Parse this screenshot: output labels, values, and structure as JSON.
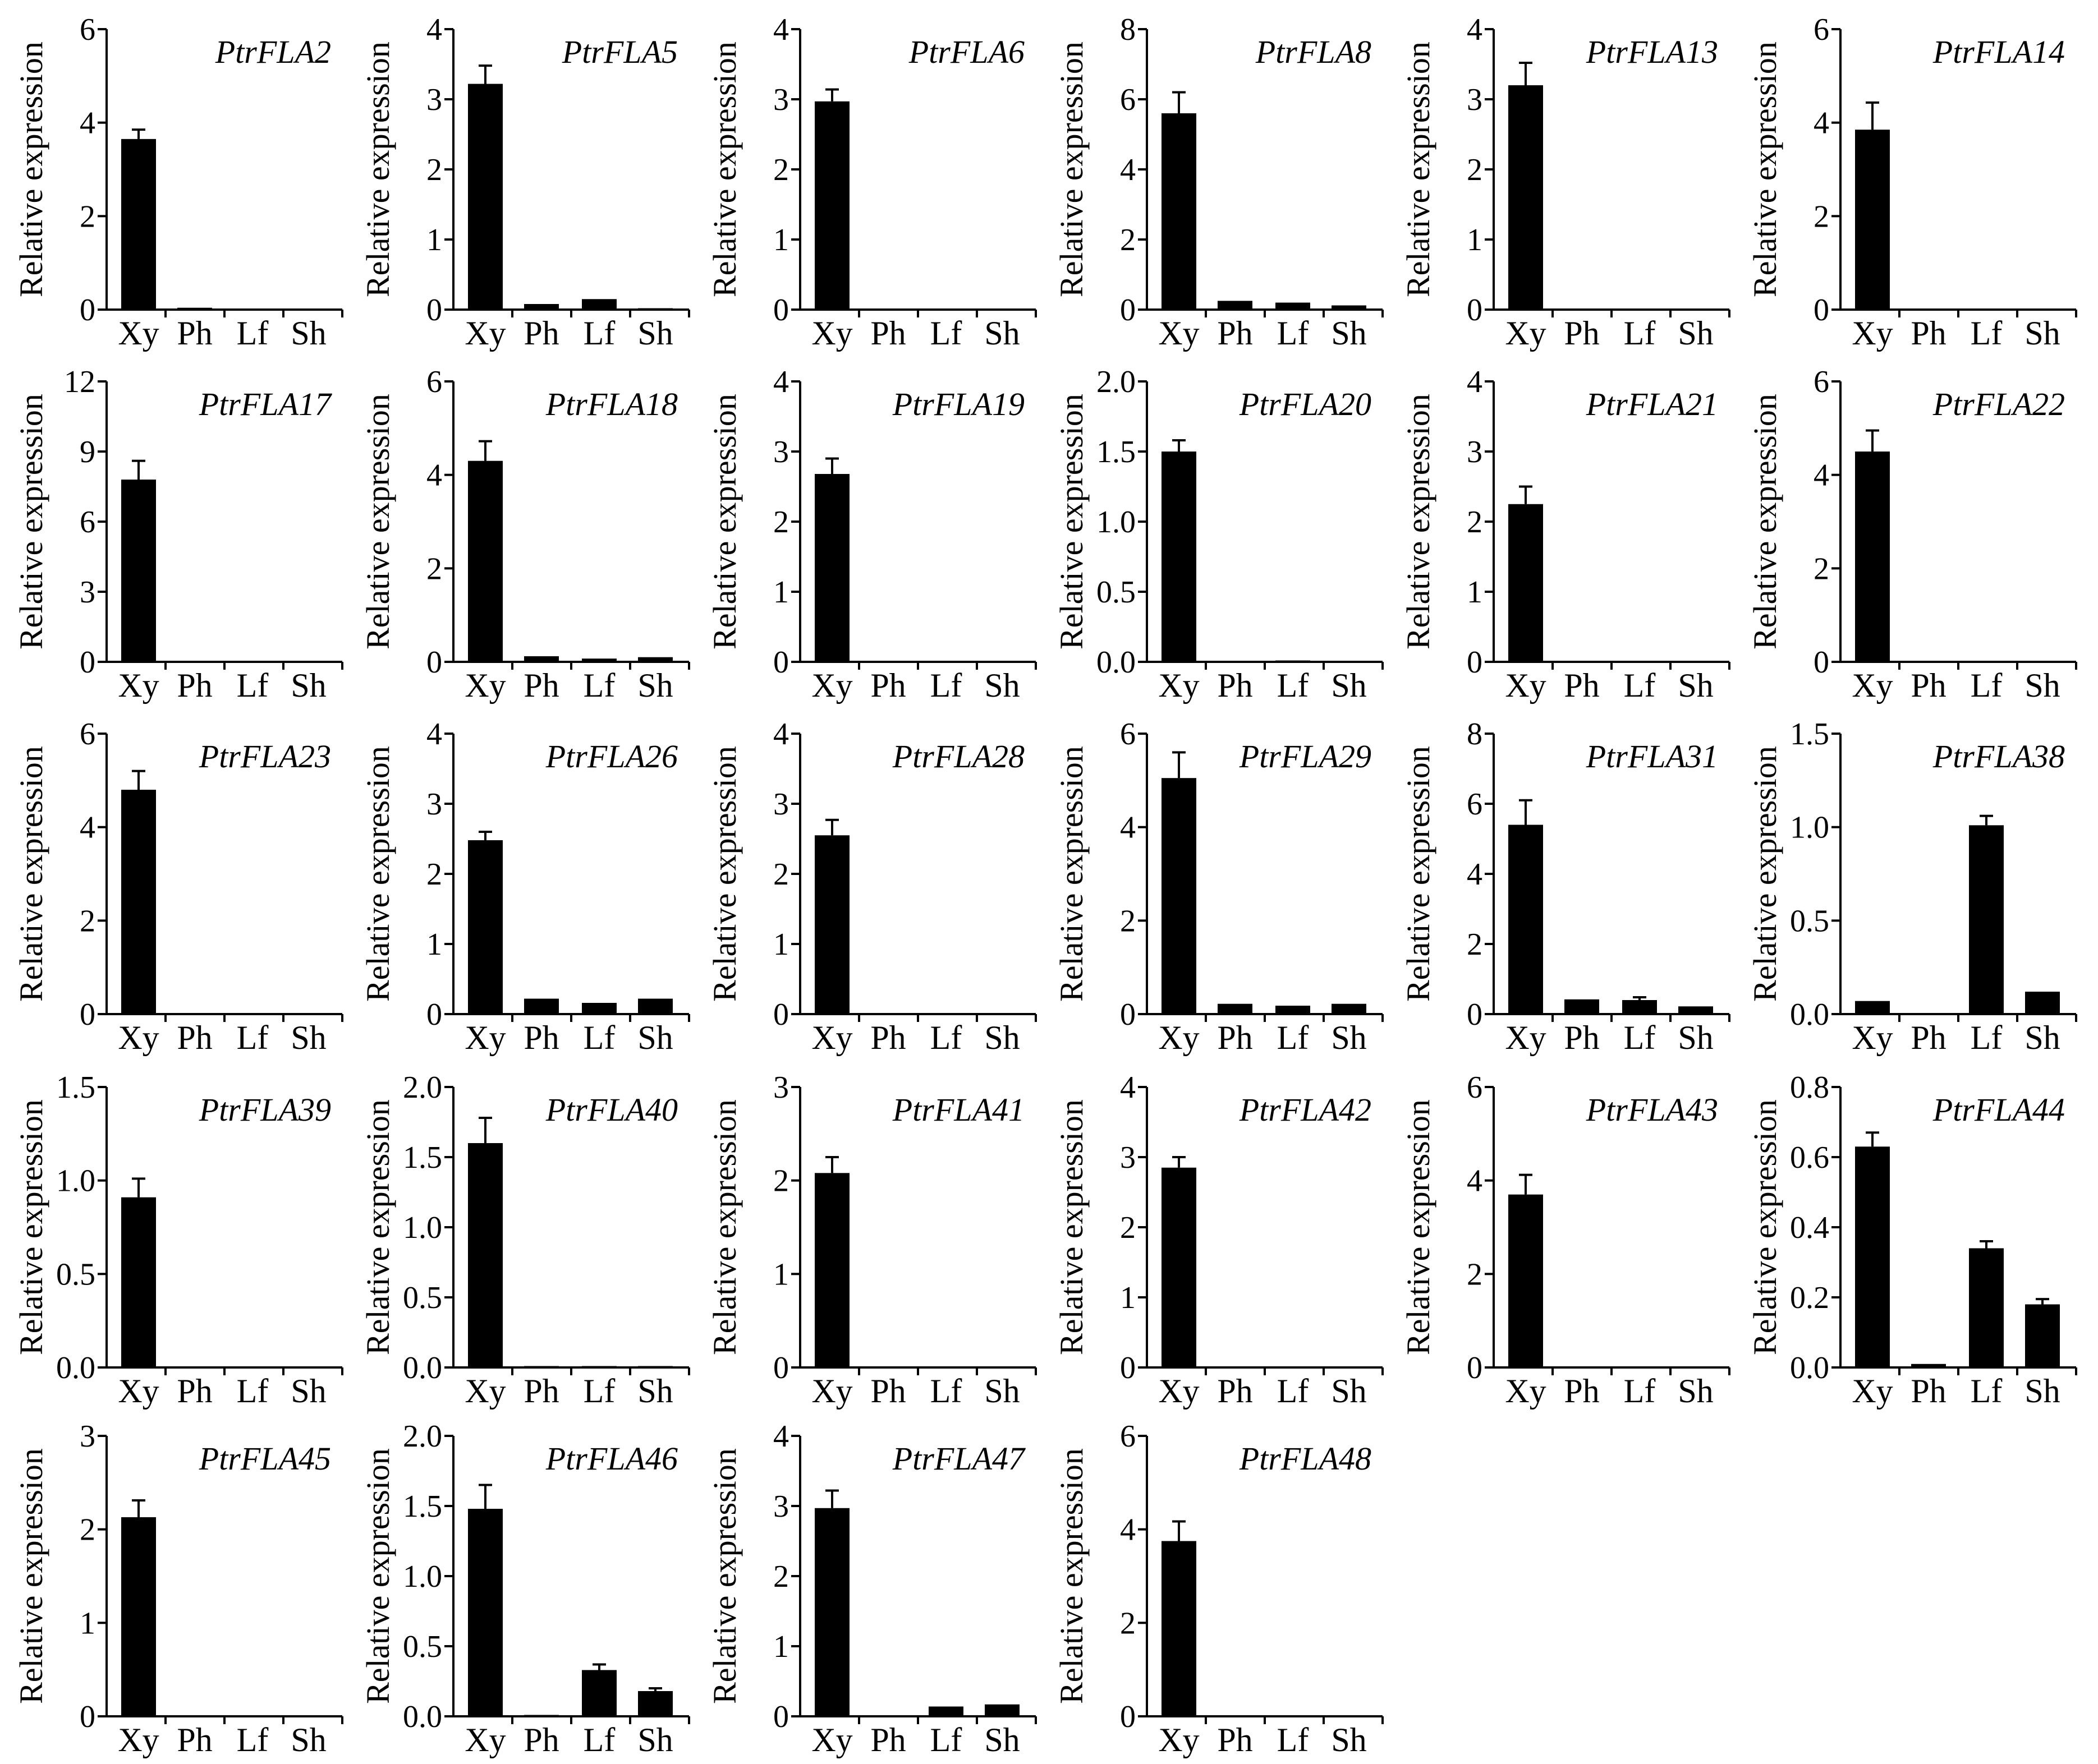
{
  "figure": {
    "y_axis_label": "Relative expression",
    "categories": [
      "Xy",
      "Ph",
      "Lf",
      "Sh"
    ],
    "colors": {
      "bar": "#000000",
      "axis": "#000000",
      "background": "#ffffff"
    }
  },
  "chart_data": [
    {
      "type": "bar",
      "title": "PtrFLA2",
      "ylabel": "Relative expression",
      "categories": [
        "Xy",
        "Ph",
        "Lf",
        "Sh"
      ],
      "values": [
        3.65,
        0.04,
        0.02,
        0.01
      ],
      "errors": [
        0.2,
        0.01,
        0.01,
        0.01
      ],
      "ylim": [
        0,
        6
      ],
      "yticks": [
        0,
        2,
        4,
        6
      ]
    },
    {
      "type": "bar",
      "title": "PtrFLA5",
      "ylabel": "Relative expression",
      "categories": [
        "Xy",
        "Ph",
        "Lf",
        "Sh"
      ],
      "values": [
        3.22,
        0.08,
        0.15,
        0.02
      ],
      "errors": [
        0.26,
        0.02,
        0.03,
        0.01
      ],
      "ylim": [
        0,
        4
      ],
      "yticks": [
        0,
        1,
        2,
        3,
        4
      ]
    },
    {
      "type": "bar",
      "title": "PtrFLA6",
      "ylabel": "Relative expression",
      "categories": [
        "Xy",
        "Ph",
        "Lf",
        "Sh"
      ],
      "values": [
        2.97,
        0.0,
        0.0,
        0.0
      ],
      "errors": [
        0.17,
        0,
        0,
        0
      ],
      "ylim": [
        0,
        4
      ],
      "yticks": [
        0,
        1,
        2,
        3,
        4
      ]
    },
    {
      "type": "bar",
      "title": "PtrFLA8",
      "ylabel": "Relative expression",
      "categories": [
        "Xy",
        "Ph",
        "Lf",
        "Sh"
      ],
      "values": [
        5.6,
        0.25,
        0.2,
        0.12
      ],
      "errors": [
        0.6,
        0.05,
        0.05,
        0.03
      ],
      "ylim": [
        0,
        8
      ],
      "yticks": [
        0,
        2,
        4,
        6,
        8
      ]
    },
    {
      "type": "bar",
      "title": "PtrFLA13",
      "ylabel": "Relative expression",
      "categories": [
        "Xy",
        "Ph",
        "Lf",
        "Sh"
      ],
      "values": [
        3.2,
        0.01,
        0.01,
        0.01
      ],
      "errors": [
        0.32,
        0,
        0,
        0
      ],
      "ylim": [
        0,
        4
      ],
      "yticks": [
        0,
        1,
        2,
        3,
        4
      ]
    },
    {
      "type": "bar",
      "title": "PtrFLA14",
      "ylabel": "Relative expression",
      "categories": [
        "Xy",
        "Ph",
        "Lf",
        "Sh"
      ],
      "values": [
        3.85,
        0.01,
        0.01,
        0.01
      ],
      "errors": [
        0.58,
        0,
        0,
        0
      ],
      "ylim": [
        0,
        6
      ],
      "yticks": [
        0,
        2,
        4,
        6
      ]
    },
    {
      "type": "bar",
      "title": "PtrFLA17",
      "ylabel": "Relative expression",
      "categories": [
        "Xy",
        "Ph",
        "Lf",
        "Sh"
      ],
      "values": [
        7.8,
        0.0,
        0.02,
        0.0
      ],
      "errors": [
        0.8,
        0,
        0.01,
        0
      ],
      "ylim": [
        0,
        12
      ],
      "yticks": [
        0,
        3,
        6,
        9,
        12
      ]
    },
    {
      "type": "bar",
      "title": "PtrFLA18",
      "ylabel": "Relative expression",
      "categories": [
        "Xy",
        "Ph",
        "Lf",
        "Sh"
      ],
      "values": [
        4.3,
        0.12,
        0.07,
        0.1
      ],
      "errors": [
        0.42,
        0.03,
        0.02,
        0.03
      ],
      "ylim": [
        0,
        6
      ],
      "yticks": [
        0,
        2,
        4,
        6
      ]
    },
    {
      "type": "bar",
      "title": "PtrFLA19",
      "ylabel": "Relative expression",
      "categories": [
        "Xy",
        "Ph",
        "Lf",
        "Sh"
      ],
      "values": [
        2.68,
        0.0,
        0.01,
        0.0
      ],
      "errors": [
        0.22,
        0,
        0,
        0
      ],
      "ylim": [
        0,
        4
      ],
      "yticks": [
        0,
        1,
        2,
        3,
        4
      ]
    },
    {
      "type": "bar",
      "title": "PtrFLA20",
      "ylabel": "Relative expression",
      "categories": [
        "Xy",
        "Ph",
        "Lf",
        "Sh"
      ],
      "values": [
        1.5,
        0.0,
        0.01,
        0.0
      ],
      "errors": [
        0.08,
        0,
        0,
        0
      ],
      "ylim": [
        0,
        2.0
      ],
      "yticks": [
        0,
        0.5,
        1.0,
        1.5,
        2.0
      ]
    },
    {
      "type": "bar",
      "title": "PtrFLA21",
      "ylabel": "Relative expression",
      "categories": [
        "Xy",
        "Ph",
        "Lf",
        "Sh"
      ],
      "values": [
        2.25,
        0.01,
        0.01,
        0.01
      ],
      "errors": [
        0.25,
        0,
        0,
        0
      ],
      "ylim": [
        0,
        4
      ],
      "yticks": [
        0,
        1,
        2,
        3,
        4
      ]
    },
    {
      "type": "bar",
      "title": "PtrFLA22",
      "ylabel": "Relative expression",
      "categories": [
        "Xy",
        "Ph",
        "Lf",
        "Sh"
      ],
      "values": [
        4.5,
        0.02,
        0.02,
        0.02
      ],
      "errors": [
        0.45,
        0,
        0,
        0
      ],
      "ylim": [
        0,
        6
      ],
      "yticks": [
        0,
        2,
        4,
        6
      ]
    },
    {
      "type": "bar",
      "title": "PtrFLA23",
      "ylabel": "Relative expression",
      "categories": [
        "Xy",
        "Ph",
        "Lf",
        "Sh"
      ],
      "values": [
        4.8,
        0.0,
        0.0,
        0.0
      ],
      "errors": [
        0.4,
        0,
        0,
        0
      ],
      "ylim": [
        0,
        6
      ],
      "yticks": [
        0,
        2,
        4,
        6
      ]
    },
    {
      "type": "bar",
      "title": "PtrFLA26",
      "ylabel": "Relative expression",
      "categories": [
        "Xy",
        "Ph",
        "Lf",
        "Sh"
      ],
      "values": [
        2.48,
        0.22,
        0.16,
        0.22
      ],
      "errors": [
        0.12,
        0.03,
        0.02,
        0.03
      ],
      "ylim": [
        0,
        4
      ],
      "yticks": [
        0,
        1,
        2,
        3,
        4
      ]
    },
    {
      "type": "bar",
      "title": "PtrFLA28",
      "ylabel": "Relative expression",
      "categories": [
        "Xy",
        "Ph",
        "Lf",
        "Sh"
      ],
      "values": [
        2.55,
        0.0,
        0.0,
        0.0
      ],
      "errors": [
        0.22,
        0,
        0,
        0
      ],
      "ylim": [
        0,
        4
      ],
      "yticks": [
        0,
        1,
        2,
        3,
        4
      ]
    },
    {
      "type": "bar",
      "title": "PtrFLA29",
      "ylabel": "Relative expression",
      "categories": [
        "Xy",
        "Ph",
        "Lf",
        "Sh"
      ],
      "values": [
        5.05,
        0.22,
        0.18,
        0.22
      ],
      "errors": [
        0.55,
        0.03,
        0.03,
        0.03
      ],
      "ylim": [
        0,
        6
      ],
      "yticks": [
        0,
        2,
        4,
        6
      ]
    },
    {
      "type": "bar",
      "title": "PtrFLA31",
      "ylabel": "Relative expression",
      "categories": [
        "Xy",
        "Ph",
        "Lf",
        "Sh"
      ],
      "values": [
        5.4,
        0.42,
        0.4,
        0.22
      ],
      "errors": [
        0.7,
        0.05,
        0.08,
        0.04
      ],
      "ylim": [
        0,
        8
      ],
      "yticks": [
        0,
        2,
        4,
        6,
        8
      ]
    },
    {
      "type": "bar",
      "title": "PtrFLA38",
      "ylabel": "Relative expression",
      "categories": [
        "Xy",
        "Ph",
        "Lf",
        "Sh"
      ],
      "values": [
        0.07,
        0.005,
        1.01,
        0.12
      ],
      "errors": [
        0.01,
        0.002,
        0.05,
        0.01
      ],
      "ylim": [
        0,
        1.5
      ],
      "yticks": [
        0,
        0.5,
        1.0,
        1.5
      ]
    },
    {
      "type": "bar",
      "title": "PtrFLA39",
      "ylabel": "Relative expression",
      "categories": [
        "Xy",
        "Ph",
        "Lf",
        "Sh"
      ],
      "values": [
        0.91,
        0.0,
        0.0,
        0.0
      ],
      "errors": [
        0.1,
        0,
        0,
        0
      ],
      "ylim": [
        0,
        1.5
      ],
      "yticks": [
        0,
        0.5,
        1.0,
        1.5
      ]
    },
    {
      "type": "bar",
      "title": "PtrFLA40",
      "ylabel": "Relative expression",
      "categories": [
        "Xy",
        "Ph",
        "Lf",
        "Sh"
      ],
      "values": [
        1.6,
        0.01,
        0.01,
        0.01
      ],
      "errors": [
        0.18,
        0,
        0,
        0
      ],
      "ylim": [
        0,
        2.0
      ],
      "yticks": [
        0,
        0.5,
        1.0,
        1.5,
        2.0
      ]
    },
    {
      "type": "bar",
      "title": "PtrFLA41",
      "ylabel": "Relative expression",
      "categories": [
        "Xy",
        "Ph",
        "Lf",
        "Sh"
      ],
      "values": [
        2.08,
        0.0,
        0.0,
        0.0
      ],
      "errors": [
        0.17,
        0,
        0,
        0
      ],
      "ylim": [
        0,
        3
      ],
      "yticks": [
        0,
        1,
        2,
        3
      ]
    },
    {
      "type": "bar",
      "title": "PtrFLA42",
      "ylabel": "Relative expression",
      "categories": [
        "Xy",
        "Ph",
        "Lf",
        "Sh"
      ],
      "values": [
        2.85,
        0.0,
        0.01,
        0.0
      ],
      "errors": [
        0.15,
        0,
        0,
        0
      ],
      "ylim": [
        0,
        4
      ],
      "yticks": [
        0,
        1,
        2,
        3,
        4
      ]
    },
    {
      "type": "bar",
      "title": "PtrFLA43",
      "ylabel": "Relative expression",
      "categories": [
        "Xy",
        "Ph",
        "Lf",
        "Sh"
      ],
      "values": [
        3.7,
        0.0,
        0.01,
        0.01
      ],
      "errors": [
        0.42,
        0,
        0,
        0
      ],
      "ylim": [
        0,
        6
      ],
      "yticks": [
        0,
        2,
        4,
        6
      ]
    },
    {
      "type": "bar",
      "title": "PtrFLA44",
      "ylabel": "Relative expression",
      "categories": [
        "Xy",
        "Ph",
        "Lf",
        "Sh"
      ],
      "values": [
        0.63,
        0.01,
        0.34,
        0.18
      ],
      "errors": [
        0.04,
        0.003,
        0.02,
        0.015
      ],
      "ylim": [
        0,
        0.8
      ],
      "yticks": [
        0,
        0.2,
        0.4,
        0.6,
        0.8
      ]
    },
    {
      "type": "bar",
      "title": "PtrFLA45",
      "ylabel": "Relative expression",
      "categories": [
        "Xy",
        "Ph",
        "Lf",
        "Sh"
      ],
      "values": [
        2.13,
        0.0,
        0.0,
        0.0
      ],
      "errors": [
        0.18,
        0,
        0,
        0
      ],
      "ylim": [
        0,
        3
      ],
      "yticks": [
        0,
        1,
        2,
        3
      ]
    },
    {
      "type": "bar",
      "title": "PtrFLA46",
      "ylabel": "Relative expression",
      "categories": [
        "Xy",
        "Ph",
        "Lf",
        "Sh"
      ],
      "values": [
        1.48,
        0.01,
        0.33,
        0.18
      ],
      "errors": [
        0.17,
        0.005,
        0.04,
        0.02
      ],
      "ylim": [
        0,
        2.0
      ],
      "yticks": [
        0,
        0.5,
        1.0,
        1.5,
        2.0
      ]
    },
    {
      "type": "bar",
      "title": "PtrFLA47",
      "ylabel": "Relative expression",
      "categories": [
        "Xy",
        "Ph",
        "Lf",
        "Sh"
      ],
      "values": [
        2.97,
        0.01,
        0.14,
        0.17
      ],
      "errors": [
        0.25,
        0.005,
        0.03,
        0.03
      ],
      "ylim": [
        0,
        4
      ],
      "yticks": [
        0,
        1,
        2,
        3,
        4
      ]
    },
    {
      "type": "bar",
      "title": "PtrFLA48",
      "ylabel": "Relative expression",
      "categories": [
        "Xy",
        "Ph",
        "Lf",
        "Sh"
      ],
      "values": [
        3.75,
        0.0,
        0.01,
        0.0
      ],
      "errors": [
        0.42,
        0,
        0,
        0
      ],
      "ylim": [
        0,
        6
      ],
      "yticks": [
        0,
        2,
        4,
        6
      ]
    }
  ]
}
